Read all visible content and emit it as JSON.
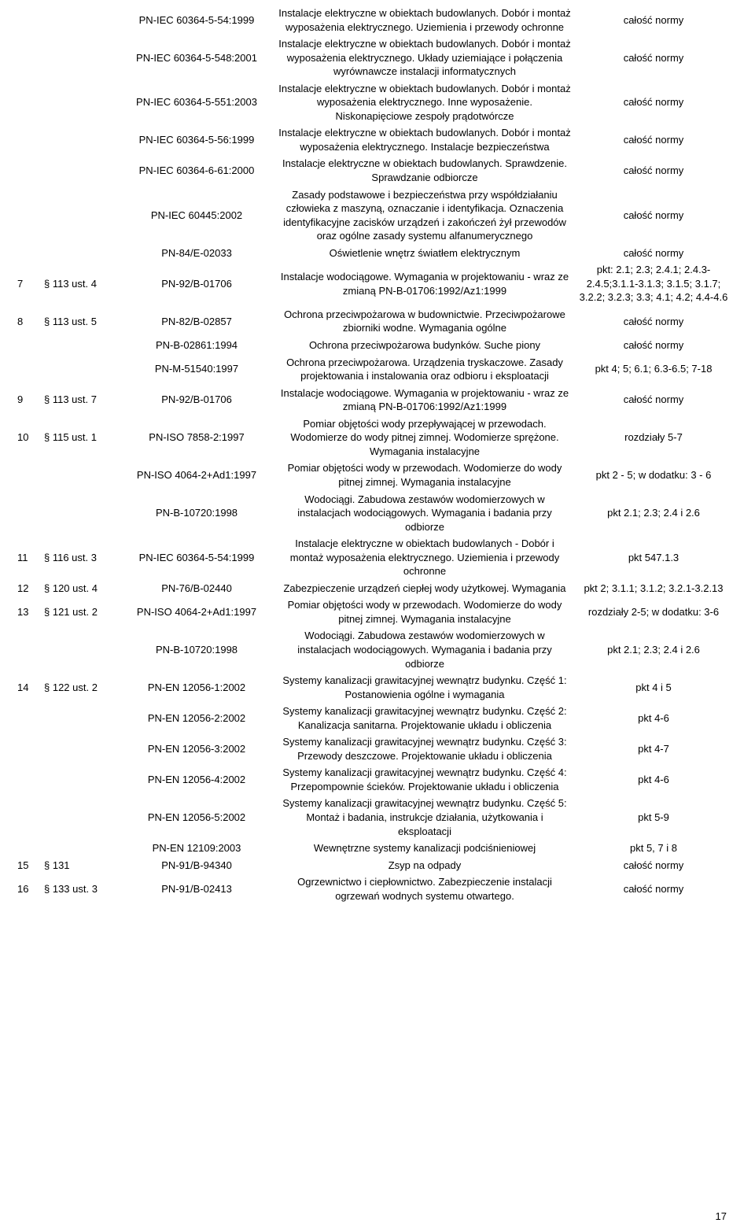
{
  "page_number": "17",
  "columns": {
    "num": "",
    "ref": "",
    "std": "",
    "desc": "",
    "scope": ""
  },
  "rows": [
    {
      "num": "",
      "ref": "",
      "std": "PN-IEC 60364-5-54:1999",
      "desc": "Instalacje elektryczne w obiektach budowlanych. Dobór i montaż wyposażenia elektrycznego. Uziemienia i przewody ochronne",
      "scope": "całość normy"
    },
    {
      "num": "",
      "ref": "",
      "std": "PN-IEC 60364-5-548:2001",
      "desc": "Instalacje elektryczne w obiektach budowlanych. Dobór i montaż wyposażenia elektrycznego. Układy uziemiające i połączenia wyrównawcze instalacji informatycznych",
      "scope": "całość normy"
    },
    {
      "num": "",
      "ref": "",
      "std": "PN-IEC 60364-5-551:2003",
      "desc": "Instalacje elektryczne w obiektach budowlanych. Dobór i montaż wyposażenia elektrycznego. Inne wyposażenie. Niskonapięciowe zespoły prądotwórcze",
      "scope": "całość normy"
    },
    {
      "num": "",
      "ref": "",
      "std": "PN-IEC 60364-5-56:1999",
      "desc": "Instalacje elektryczne w obiektach budowlanych. Dobór i montaż wyposażenia elektrycznego. Instalacje bezpieczeństwa",
      "scope": "całość normy"
    },
    {
      "num": "",
      "ref": "",
      "std": "PN-IEC 60364-6-61:2000",
      "desc": "Instalacje elektryczne w obiektach budowlanych. Sprawdzenie. Sprawdzanie odbiorcze",
      "scope": "całość normy"
    },
    {
      "num": "",
      "ref": "",
      "std": "PN-IEC 60445:2002",
      "desc": "Zasady podstawowe i bezpieczeństwa przy współdziałaniu człowieka z maszyną, oznaczanie i identyfikacja. Oznaczenia identyfikacyjne zacisków urządzeń i zakończeń żył przewodów oraz ogólne zasady systemu alfanumerycznego",
      "scope": "całość normy"
    },
    {
      "num": "",
      "ref": "",
      "std": "PN-84/E-02033",
      "desc": "Oświetlenie wnętrz światłem elektrycznym",
      "scope": "całość normy"
    },
    {
      "num": "7",
      "ref": "§ 113 ust. 4",
      "std": "PN-92/B-01706",
      "desc": "Instalacje wodociągowe. Wymagania w projektowaniu - wraz ze zmianą PN-B-01706:1992/Az1:1999",
      "scope": "pkt: 2.1; 2.3; 2.4.1; 2.4.3-2.4.5;3.1.1-3.1.3; 3.1.5; 3.1.7; 3.2.2; 3.2.3; 3.3; 4.1; 4.2; 4.4-4.6"
    },
    {
      "num": "8",
      "ref": "§ 113 ust. 5",
      "std": "PN-82/B-02857",
      "desc": "Ochrona przeciwpożarowa w budownictwie. Przeciwpożarowe zbiorniki wodne. Wymagania ogólne",
      "scope": "całość normy"
    },
    {
      "num": "",
      "ref": "",
      "std": "PN-B-02861:1994",
      "desc": "Ochrona przeciwpożarowa budynków. Suche piony",
      "scope": "całość normy"
    },
    {
      "num": "",
      "ref": "",
      "std": "PN-M-51540:1997",
      "desc": "Ochrona przeciwpożarowa. Urządzenia tryskaczowe. Zasady projektowania i instalowania oraz odbioru i eksploatacji",
      "scope": "pkt 4; 5; 6.1; 6.3-6.5; 7-18"
    },
    {
      "num": "9",
      "ref": "§ 113 ust. 7",
      "std": "PN-92/B-01706",
      "desc": "Instalacje wodociągowe. Wymagania w projektowaniu - wraz ze zmianą PN-B-01706:1992/Az1:1999",
      "scope": "całość normy"
    },
    {
      "num": "10",
      "ref": "§ 115 ust. 1",
      "std": "PN-ISO 7858-2:1997",
      "desc": "Pomiar objętości wody przepływającej w przewodach. Wodomierze do wody pitnej zimnej. Wodomierze sprężone. Wymagania instalacyjne",
      "scope": "rozdziały 5-7"
    },
    {
      "num": "",
      "ref": "",
      "std": "PN-ISO 4064-2+Ad1:1997",
      "desc": "Pomiar objętości wody w przewodach. Wodomierze do wody pitnej zimnej. Wymagania instalacyjne",
      "scope": "pkt 2 - 5; w dodatku: 3 - 6"
    },
    {
      "num": "",
      "ref": "",
      "std": "PN-B-10720:1998",
      "desc": "Wodociągi. Zabudowa zestawów wodomierzowych w instalacjach wodociągowych. Wymagania i badania przy odbiorze",
      "scope": "pkt 2.1; 2.3; 2.4 i 2.6"
    },
    {
      "num": "11",
      "ref": "§ 116 ust. 3",
      "std": "PN-IEC 60364-5-54:1999",
      "desc": "Instalacje elektryczne w obiektach budowlanych - Dobór i montaż wyposażenia elektrycznego. Uziemienia i przewody ochronne",
      "scope": "pkt 547.1.3"
    },
    {
      "num": "12",
      "ref": "§ 120 ust. 4",
      "std": "PN-76/B-02440",
      "desc": "Zabezpieczenie urządzeń ciepłej wody użytkowej. Wymagania",
      "scope": "pkt 2; 3.1.1; 3.1.2; 3.2.1-3.2.13"
    },
    {
      "num": "13",
      "ref": "§ 121 ust. 2",
      "std": "PN-ISO 4064-2+Ad1:1997",
      "desc": "Pomiar objętości wody w przewodach. Wodomierze do wody pitnej zimnej. Wymagania instalacyjne",
      "scope": "rozdziały 2-5; w dodatku: 3-6"
    },
    {
      "num": "",
      "ref": "",
      "std": "PN-B-10720:1998",
      "desc": "Wodociągi. Zabudowa zestawów wodomierzowych w instalacjach wodociągowych. Wymagania i badania przy odbiorze",
      "scope": "pkt 2.1; 2.3; 2.4 i 2.6"
    },
    {
      "num": "14",
      "ref": "§ 122 ust. 2",
      "std": "PN-EN 12056-1:2002",
      "desc": "Systemy kanalizacji grawitacyjnej wewnątrz budynku. Część 1: Postanowienia ogólne i wymagania",
      "scope": "pkt 4 i 5"
    },
    {
      "num": "",
      "ref": "",
      "std": "PN-EN 12056-2:2002",
      "desc": "Systemy kanalizacji grawitacyjnej wewnątrz budynku. Część 2: Kanalizacja sanitarna. Projektowanie układu i obliczenia",
      "scope": "pkt 4-6"
    },
    {
      "num": "",
      "ref": "",
      "std": "PN-EN 12056-3:2002",
      "desc": "Systemy kanalizacji grawitacyjnej wewnątrz budynku. Część 3: Przewody deszczowe. Projektowanie układu i obliczenia",
      "scope": "pkt 4-7"
    },
    {
      "num": "",
      "ref": "",
      "std": "PN-EN 12056-4:2002",
      "desc": "Systemy kanalizacji grawitacyjnej wewnątrz budynku. Część 4: Przepompownie ścieków. Projektowanie układu i obliczenia",
      "scope": "pkt 4-6"
    },
    {
      "num": "",
      "ref": "",
      "std": "PN-EN 12056-5:2002",
      "desc": "Systemy kanalizacji grawitacyjnej wewnątrz budynku. Część 5: Montaż i badania, instrukcje działania, użytkowania i eksploatacji",
      "scope": "pkt 5-9"
    },
    {
      "num": "",
      "ref": "",
      "std": "PN-EN 12109:2003",
      "desc": "Wewnętrzne systemy kanalizacji podciśnieniowej",
      "scope": "pkt 5, 7 i 8"
    },
    {
      "num": "15",
      "ref": "§ 131",
      "std": "PN-91/B-94340",
      "desc": "Zsyp na odpady",
      "scope": "całość normy"
    },
    {
      "num": "16",
      "ref": "§ 133 ust. 3",
      "std": "PN-91/B-02413",
      "desc": "Ogrzewnictwo i ciepłownictwo. Zabezpieczenie instalacji ogrzewań wodnych systemu otwartego.",
      "scope": "całość normy"
    }
  ]
}
